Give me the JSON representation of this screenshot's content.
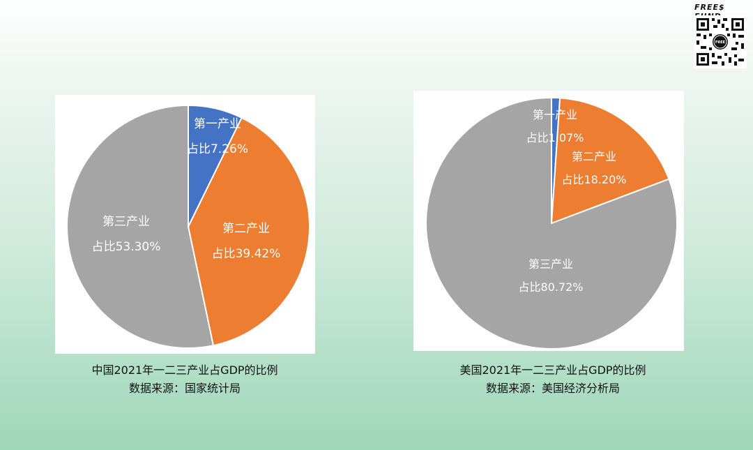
{
  "brand": "FREE$ FUND",
  "chart_data": [
    {
      "type": "pie",
      "categories": [
        "第一产业",
        "第二产业",
        "第三产业"
      ],
      "values": [
        7.26,
        39.42,
        53.3
      ],
      "value_labels": [
        "占比7.26%",
        "占比39.42%",
        "占比53.30%"
      ],
      "colors": [
        "#4472c4",
        "#ed7d31",
        "#a5a5a5"
      ],
      "caption": [
        "中国2021年一二三产业占GDP的比例",
        "数据来源：国家统计局"
      ]
    },
    {
      "type": "pie",
      "categories": [
        "第一产业",
        "第二产业",
        "第三产业"
      ],
      "values": [
        1.07,
        18.2,
        80.72
      ],
      "value_labels": [
        "占比1.07%",
        "占比18.20%",
        "占比80.72%"
      ],
      "colors": [
        "#4472c4",
        "#ed7d31",
        "#a5a5a5"
      ],
      "caption": [
        "美国2021年一二三产业占GDP的比例",
        "数据来源：美国经济分析局"
      ]
    }
  ]
}
